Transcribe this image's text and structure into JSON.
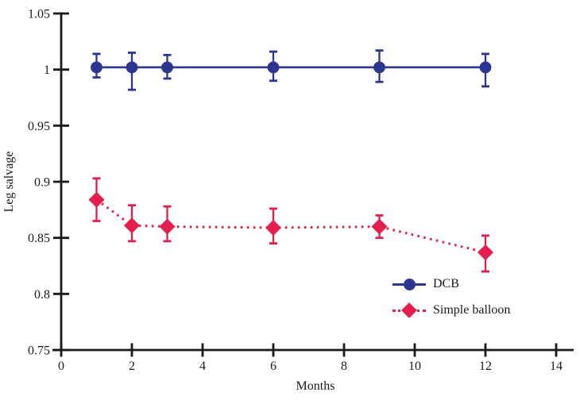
{
  "figure": {
    "background": "#ffffff",
    "text_color": "#1a1a1a"
  },
  "chart_data": {
    "type": "line",
    "title": "",
    "xlabel": "Months",
    "ylabel": "Leg salvage",
    "xlim": [
      0,
      14
    ],
    "ylim": [
      0.75,
      1.05
    ],
    "xticks": [
      0,
      2,
      4,
      6,
      8,
      10,
      12,
      14
    ],
    "yticks": [
      0.75,
      0.8,
      0.85,
      0.9,
      0.95,
      1,
      1.05
    ],
    "grid": false,
    "legend_position": "inside-bottom-right",
    "error_bars": true,
    "series": [
      {
        "name": "DCB",
        "color": "#2c3590",
        "line_style": "solid",
        "marker": "circle",
        "x": [
          1,
          2,
          3,
          6,
          9,
          12
        ],
        "y": [
          1.002,
          1.002,
          1.002,
          1.002,
          1.002,
          1.002
        ],
        "err_low": [
          0.993,
          0.982,
          0.992,
          0.99,
          0.989,
          0.985
        ],
        "err_high": [
          1.014,
          1.015,
          1.013,
          1.016,
          1.017,
          1.014
        ]
      },
      {
        "name": "Simple balloon",
        "color": "#e41e4c",
        "line_style": "dotted",
        "marker": "diamond",
        "x": [
          1,
          2,
          3,
          6,
          9,
          12
        ],
        "y": [
          0.884,
          0.861,
          0.86,
          0.859,
          0.86,
          0.837
        ],
        "err_low": [
          0.865,
          0.847,
          0.847,
          0.845,
          0.85,
          0.82
        ],
        "err_high": [
          0.903,
          0.879,
          0.878,
          0.876,
          0.87,
          0.852
        ]
      }
    ]
  }
}
